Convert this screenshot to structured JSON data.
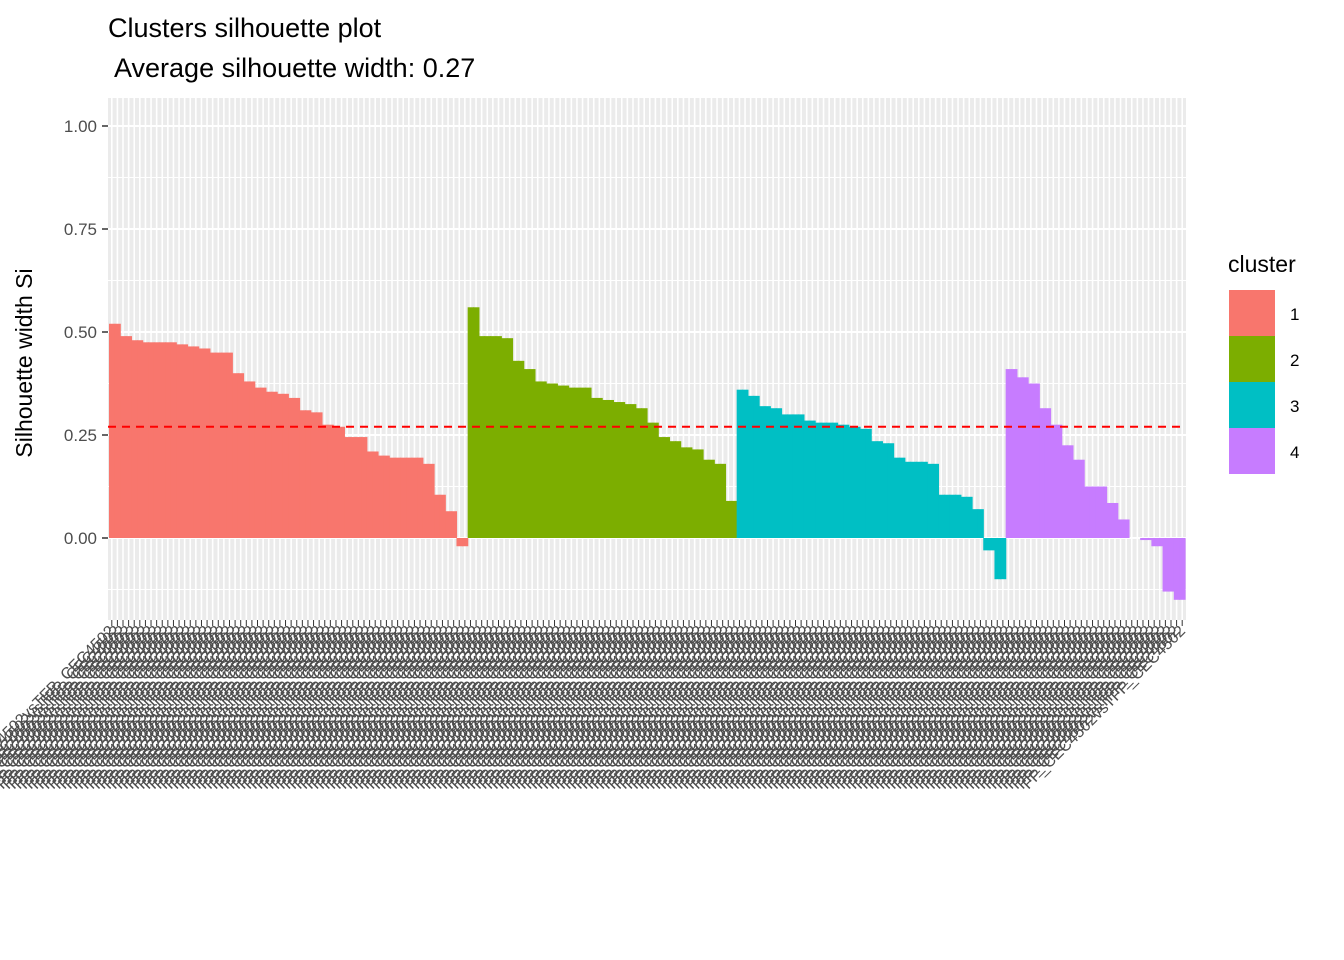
{
  "chart_data": {
    "type": "bar",
    "title": "Clusters silhouette plot",
    "subtitle": " Average silhouette width: 0.27",
    "xlabel": "",
    "ylabel": "Silhouette width Si",
    "ylim": [
      -0.16,
      1.06
    ],
    "yticks": [
      0.0,
      0.25,
      0.5,
      0.75,
      1.0
    ],
    "ytick_labels": [
      "0.00",
      "0.25",
      "0.50",
      "0.75",
      "1.00"
    ],
    "average_line": 0.27,
    "average_line_color": "#FF0000",
    "grid": true,
    "panel_background": "#EBEBEB",
    "legend": {
      "title": "cluster",
      "placement": "right",
      "entries": [
        {
          "label": "1",
          "color": "#F8766D"
        },
        {
          "label": "2",
          "color": "#7CAE00"
        },
        {
          "label": "3",
          "color": "#00BFC4"
        },
        {
          "label": "4",
          "color": "#C77CFF"
        }
      ]
    },
    "series": [
      {
        "cluster": "1",
        "color": "#F8766D",
        "values": [
          0.52,
          0.52,
          0.49,
          0.49,
          0.48,
          0.48,
          0.475,
          0.475,
          0.475,
          0.475,
          0.475,
          0.475,
          0.47,
          0.47,
          0.465,
          0.465,
          0.46,
          0.46,
          0.45,
          0.45,
          0.45,
          0.45,
          0.4,
          0.4,
          0.38,
          0.38,
          0.365,
          0.365,
          0.355,
          0.355,
          0.35,
          0.35,
          0.34,
          0.34,
          0.31,
          0.31,
          0.305,
          0.305,
          0.275,
          0.275,
          0.27,
          0.27,
          0.245,
          0.245,
          0.245,
          0.245,
          0.21,
          0.21,
          0.2,
          0.2,
          0.195,
          0.195,
          0.195,
          0.195,
          0.195,
          0.195,
          0.18,
          0.18,
          0.105,
          0.105,
          0.065,
          0.065,
          -0.02,
          -0.02
        ]
      },
      {
        "cluster": "2",
        "color": "#7CAE00",
        "values": [
          0.56,
          0.56,
          0.49,
          0.49,
          0.49,
          0.49,
          0.485,
          0.485,
          0.43,
          0.43,
          0.41,
          0.41,
          0.38,
          0.38,
          0.375,
          0.375,
          0.37,
          0.37,
          0.365,
          0.365,
          0.365,
          0.365,
          0.34,
          0.34,
          0.335,
          0.335,
          0.33,
          0.33,
          0.325,
          0.325,
          0.315,
          0.315,
          0.28,
          0.28,
          0.245,
          0.245,
          0.235,
          0.235,
          0.22,
          0.22,
          0.215,
          0.215,
          0.19,
          0.19,
          0.18,
          0.18,
          0.09,
          0.09
        ]
      },
      {
        "cluster": "3",
        "color": "#00BFC4",
        "values": [
          0.36,
          0.36,
          0.345,
          0.345,
          0.32,
          0.32,
          0.315,
          0.315,
          0.3,
          0.3,
          0.3,
          0.3,
          0.285,
          0.285,
          0.28,
          0.28,
          0.28,
          0.28,
          0.275,
          0.275,
          0.27,
          0.27,
          0.265,
          0.265,
          0.235,
          0.235,
          0.23,
          0.23,
          0.195,
          0.195,
          0.185,
          0.185,
          0.185,
          0.185,
          0.18,
          0.18,
          0.105,
          0.105,
          0.105,
          0.105,
          0.1,
          0.1,
          0.07,
          0.07,
          -0.03,
          -0.03,
          -0.1,
          -0.1
        ]
      },
      {
        "cluster": "4",
        "color": "#C77CFF",
        "values": [
          0.41,
          0.41,
          0.39,
          0.39,
          0.375,
          0.375,
          0.315,
          0.315,
          0.275,
          0.275,
          0.225,
          0.225,
          0.19,
          0.19,
          0.125,
          0.125,
          0.125,
          0.125,
          0.085,
          0.085,
          0.045,
          0.045,
          0.0,
          0.0,
          -0.005,
          -0.005,
          -0.02,
          -0.02,
          -0.13,
          -0.13,
          -0.15,
          -0.15
        ]
      }
    ],
    "x_label_prefix": "FP_CEC4",
    "x_label_sample": "FP_CEC4502vsTFP_CEC4502"
  }
}
